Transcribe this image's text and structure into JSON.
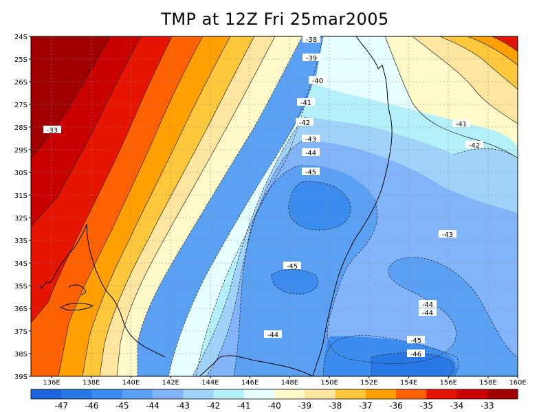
{
  "title": "TMP at 12Z Fri 25mar2005",
  "latitudes": [
    "24S",
    "25S",
    "26S",
    "27S",
    "28S",
    "29S",
    "30S",
    "31S",
    "32S",
    "33S",
    "34S",
    "35S",
    "36S",
    "37S",
    "38S",
    "39S"
  ],
  "longitudes": [
    "136E",
    "138E",
    "140E",
    "142E",
    "144E",
    "146E",
    "148E",
    "150E",
    "152E",
    "154E",
    "156E",
    "158E",
    "160E"
  ],
  "colorbar": {
    "labels": [
      "-47",
      "-46",
      "-45",
      "-44",
      "-43",
      "-42",
      "-41",
      "-40",
      "-39",
      "-38",
      "-37",
      "-36",
      "-35",
      "-34",
      "-33"
    ],
    "colors": [
      "#1e64dc",
      "#2878e6",
      "#3c8cf0",
      "#5aa0f5",
      "#82b4fa",
      "#a0d2fa",
      "#b4f0fa",
      "#e6ffff",
      "#fffac8",
      "#ffe6a0",
      "#ffc83c",
      "#ffa000",
      "#ff6000",
      "#e61400",
      "#c80000",
      "#a00000"
    ]
  },
  "contour_labels": [
    {
      "text": "-38"
    },
    {
      "text": "-39"
    },
    {
      "text": "-40"
    },
    {
      "text": "-41"
    },
    {
      "text": "-42"
    },
    {
      "text": "-43"
    },
    {
      "text": "-44"
    },
    {
      "text": "-45"
    },
    {
      "text": "-33"
    },
    {
      "text": "-41"
    },
    {
      "text": "-42"
    },
    {
      "text": "-43"
    },
    {
      "text": "-45"
    },
    {
      "text": "-44"
    },
    {
      "text": "-44"
    },
    {
      "text": "-44"
    },
    {
      "text": "-45"
    },
    {
      "text": "-46"
    }
  ]
}
